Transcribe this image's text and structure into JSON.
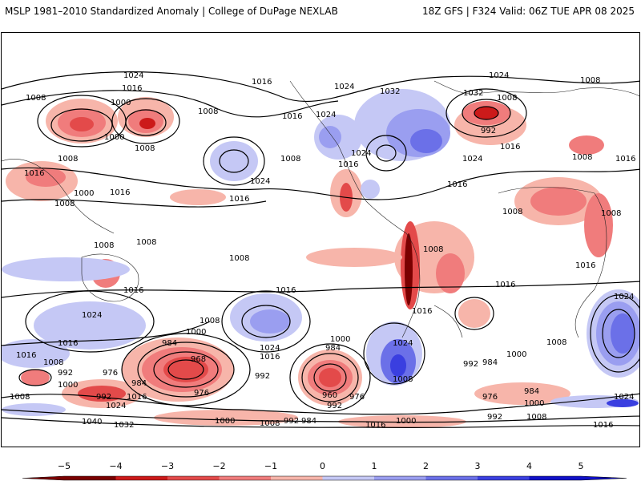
{
  "header": {
    "left_title": "MSLP 1981–2010 Standardized Anomaly | College of DuPage NEXLAB",
    "right_title": "18Z GFS | F324 Valid: 06Z TUE APR 08 2025"
  },
  "colorbar": {
    "ticks": [
      "−5",
      "−4",
      "−3",
      "−2",
      "−1",
      "0",
      "1",
      "2",
      "3",
      "4",
      "5"
    ],
    "colors": {
      "neg5": "#7a0000",
      "neg4": "#cc1a1a",
      "neg3": "#e34a4a",
      "neg2": "#f07c7c",
      "neg1": "#f7b5aa",
      "zero": "#ffffff",
      "pos1": "#c5c8f5",
      "pos2": "#9a9ef0",
      "pos3": "#6b70e8",
      "pos4": "#3a3fe0",
      "pos5": "#1010c8"
    }
  },
  "isobar_labels": [
    "1024",
    "1016",
    "1008",
    "1000",
    "992",
    "984",
    "976",
    "968",
    "960",
    "1032",
    "1040"
  ],
  "map_labels": [
    {
      "text": "1024",
      "lon": "-150"
    },
    {
      "text": "1016"
    },
    {
      "text": "1008"
    },
    {
      "text": "1000"
    },
    {
      "text": "992"
    },
    {
      "text": "984"
    },
    {
      "text": "976"
    },
    {
      "text": "968"
    },
    {
      "text": "960"
    },
    {
      "text": "1032"
    },
    {
      "text": "1040"
    }
  ]
}
